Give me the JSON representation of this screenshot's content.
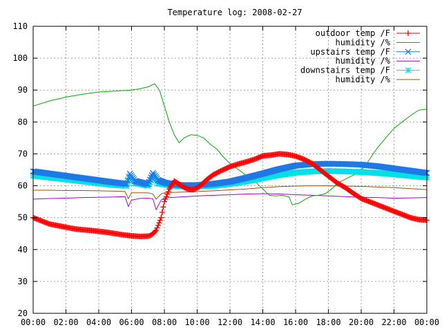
{
  "chart_data": {
    "type": "line",
    "title": "Temperature log: 2008-02-27",
    "xlabel": "",
    "ylabel": "",
    "xlim": [
      0,
      24
    ],
    "ylim": [
      20,
      110
    ],
    "x_ticks": [
      {
        "value": 0,
        "label": "00:00"
      },
      {
        "value": 2,
        "label": "02:00"
      },
      {
        "value": 4,
        "label": "04:00"
      },
      {
        "value": 6,
        "label": "06:00"
      },
      {
        "value": 8,
        "label": "08:00"
      },
      {
        "value": 10,
        "label": "10:00"
      },
      {
        "value": 12,
        "label": "12:00"
      },
      {
        "value": 14,
        "label": "14:00"
      },
      {
        "value": 16,
        "label": "16:00"
      },
      {
        "value": 18,
        "label": "18:00"
      },
      {
        "value": 20,
        "label": "20:00"
      },
      {
        "value": 22,
        "label": "22:00"
      },
      {
        "value": 24,
        "label": "00:00"
      }
    ],
    "y_ticks": [
      {
        "value": 20,
        "label": "20"
      },
      {
        "value": 30,
        "label": "30"
      },
      {
        "value": 40,
        "label": "40"
      },
      {
        "value": 50,
        "label": "50"
      },
      {
        "value": 60,
        "label": "60"
      },
      {
        "value": 70,
        "label": "70"
      },
      {
        "value": 80,
        "label": "80"
      },
      {
        "value": 90,
        "label": "90"
      },
      {
        "value": 100,
        "label": "100"
      },
      {
        "value": 110,
        "label": "110"
      }
    ],
    "grid": true,
    "legend_position": "top-right",
    "series": [
      {
        "name": "outdoor temp /F",
        "color": "#ff0000",
        "marker": "plus",
        "x": [
          0,
          0.5,
          1,
          1.5,
          2,
          2.5,
          3,
          3.5,
          4,
          4.5,
          5,
          5.5,
          6,
          6.5,
          7,
          7.2,
          7.5,
          7.8,
          8,
          8.3,
          8.6,
          8.9,
          9.2,
          9.5,
          9.8,
          10,
          10.3,
          10.6,
          11,
          11.5,
          12,
          12.5,
          13,
          13.5,
          14,
          14.5,
          15,
          15.5,
          16,
          16.5,
          17,
          17.5,
          18,
          18.5,
          19,
          19.5,
          20,
          20.5,
          21,
          21.5,
          22,
          22.5,
          23,
          23.5,
          24
        ],
        "y": [
          50,
          49,
          48,
          47.5,
          47,
          46.5,
          46.2,
          46,
          45.7,
          45.4,
          45,
          44.6,
          44.3,
          44.1,
          44.2,
          44.5,
          46,
          50,
          55,
          59,
          61.5,
          60.5,
          59.5,
          58.8,
          58.8,
          59.3,
          60.5,
          62,
          63.5,
          64.8,
          66,
          66.8,
          67.5,
          68.3,
          69.4,
          69.6,
          70,
          69.8,
          69.3,
          68.3,
          67,
          65,
          63,
          61,
          59.5,
          57.7,
          56,
          55,
          54,
          53,
          52,
          51,
          50,
          49.4,
          49.2
        ]
      },
      {
        "name": "humidity /%",
        "color": "#00aa00",
        "marker": "none",
        "x": [
          0,
          1,
          2,
          3,
          4,
          5,
          6,
          6.5,
          7,
          7.4,
          7.7,
          8,
          8.3,
          8.6,
          8.9,
          9.2,
          9.6,
          10,
          10.4,
          10.8,
          11.2,
          11.6,
          12,
          12.4,
          12.8,
          13.2,
          13.6,
          14,
          14.4,
          14.8,
          15.2,
          15.6,
          15.8,
          16.2,
          16.6,
          17,
          17.4,
          17.8,
          18.2,
          18.6,
          19,
          19.4,
          19.8,
          20.2,
          20.6,
          21,
          21.5,
          22,
          22.5,
          23,
          23.5,
          24
        ],
        "y": [
          85,
          86.6,
          87.8,
          88.7,
          89.4,
          89.7,
          90,
          90.4,
          91,
          92,
          90,
          85,
          80,
          76,
          73.5,
          75,
          76,
          75.8,
          75,
          73,
          71.5,
          69,
          67,
          65.5,
          64,
          62,
          61,
          59,
          57,
          56.8,
          57,
          56.5,
          54,
          54.5,
          55.8,
          56.8,
          57,
          57.5,
          59,
          61,
          62,
          63,
          64,
          66,
          69,
          72,
          75,
          78,
          80,
          82,
          83.7,
          84
        ]
      },
      {
        "name": "upstairs temp /F",
        "color": "#1e78e6",
        "marker": "cross",
        "x": [
          0,
          1,
          2,
          3,
          4,
          5,
          5.7,
          5.9,
          6.2,
          6.6,
          7,
          7.3,
          7.6,
          8,
          8.5,
          9,
          10,
          11,
          12,
          13,
          14,
          15,
          16,
          17,
          18,
          19,
          20,
          21,
          22,
          23,
          24
        ],
        "y": [
          64.5,
          63.8,
          63.1,
          62.4,
          61.7,
          61,
          60.6,
          63.8,
          61.5,
          61,
          60.5,
          64,
          61.8,
          61,
          60.5,
          60.2,
          60.2,
          60.6,
          61.3,
          62.5,
          63.8,
          65.2,
          66.3,
          66.8,
          66.9,
          66.8,
          66.6,
          66.1,
          65.4,
          64.7,
          64
        ]
      },
      {
        "name": "humidity /%",
        "color": "#aa00cc",
        "marker": "none",
        "x": [
          0,
          1,
          2,
          3,
          4,
          5,
          5.6,
          5.8,
          6,
          6.5,
          7,
          7.3,
          7.5,
          7.8,
          8,
          9,
          10,
          11,
          12,
          13,
          14,
          15,
          16,
          17,
          18,
          19,
          20,
          21,
          22,
          23,
          24
        ],
        "y": [
          55.8,
          56,
          56.1,
          56.3,
          56.4,
          56.5,
          56.6,
          53.5,
          55.5,
          56,
          56.1,
          55.9,
          52.5,
          55.5,
          56.2,
          56.5,
          56.8,
          57,
          57.2,
          57.4,
          57.5,
          57.4,
          57.2,
          57,
          56.8,
          56.6,
          56.4,
          56.3,
          56.1,
          56.2,
          56.3
        ]
      },
      {
        "name": "downstairs temp /F",
        "color": "#00e0e8",
        "marker": "star",
        "x": [
          0,
          1,
          2,
          3,
          4,
          5,
          5.7,
          5.9,
          6.2,
          6.6,
          7,
          7.3,
          7.6,
          8,
          8.5,
          9,
          10,
          11,
          12,
          13,
          14,
          15,
          16,
          17,
          18,
          19,
          20,
          21,
          22,
          23,
          24
        ],
        "y": [
          63.2,
          62.6,
          62,
          61.4,
          60.8,
          60.2,
          60,
          63,
          60.8,
          60.5,
          60,
          63,
          60.8,
          60.4,
          60,
          59.8,
          59.8,
          60,
          60.6,
          61.4,
          62.4,
          63.4,
          64.1,
          64.5,
          64.6,
          64.5,
          64.3,
          64,
          63.6,
          63.1,
          62.6
        ]
      },
      {
        "name": "humidity /%",
        "color": "#a05000",
        "marker": "none",
        "x": [
          0,
          1,
          2,
          3,
          4,
          5,
          5.6,
          5.8,
          6,
          6.5,
          7,
          7.3,
          7.5,
          7.8,
          8,
          9,
          10,
          11,
          12,
          13,
          14,
          15,
          16,
          17,
          18,
          19,
          20,
          21,
          22,
          23,
          24
        ],
        "y": [
          58.6,
          58.6,
          58.5,
          58.5,
          58.4,
          58.3,
          58.2,
          56,
          57.8,
          57.8,
          57.8,
          57.4,
          55.8,
          57.4,
          57.8,
          58,
          58.2,
          58.4,
          58.7,
          59,
          59.4,
          59.7,
          59.9,
          60,
          60,
          59.9,
          59.8,
          59.6,
          59.4,
          59.1,
          58.8
        ]
      }
    ]
  }
}
